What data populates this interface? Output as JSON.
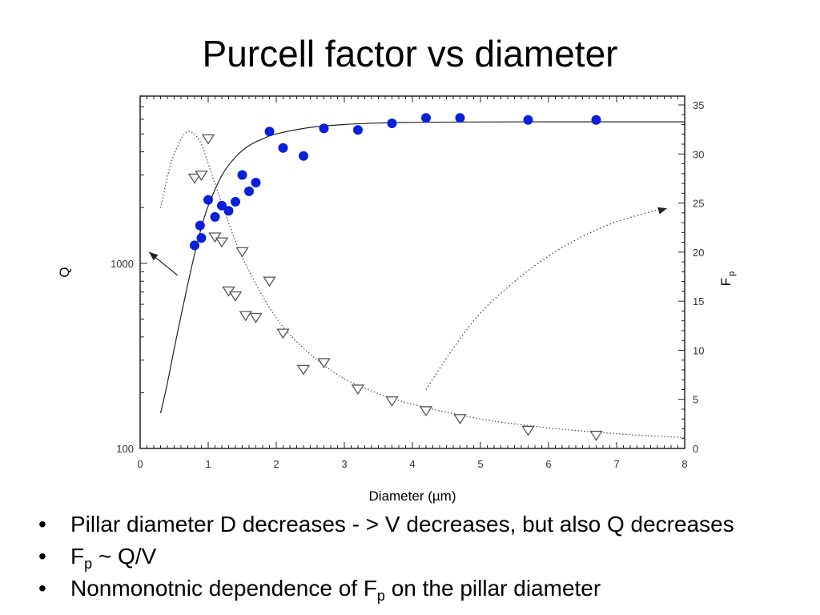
{
  "title": "Purcell factor vs diameter",
  "bullets": [
    {
      "text": "Pillar diameter D decreases - > V decreases, but also Q decreases"
    },
    {
      "pre": "F",
      "sub": "p",
      "post": " ~ Q/V"
    },
    {
      "pre": "Nonmonotnic dependence of F",
      "sub": "p",
      "post": " on the pillar diameter"
    }
  ],
  "chart_data": {
    "type": "scatter",
    "xlabel": "Diameter (µm)",
    "ylabel_left": "Q",
    "ylabel_right_main": "F",
    "ylabel_right_sub": "p",
    "x_range": [
      0,
      8
    ],
    "x_ticks": [
      "0",
      "1",
      "2",
      "3",
      "4",
      "5",
      "6",
      "7",
      "8"
    ],
    "y_left_scale": "log",
    "y_left_range": [
      100,
      8000
    ],
    "y_left_ticks": [
      "100",
      "1000"
    ],
    "y_right_range": [
      0,
      35
    ],
    "y_right_ticks": [
      "0",
      "5",
      "10",
      "15",
      "20",
      "25",
      "30",
      "35"
    ],
    "colors": {
      "q_points": "#0a1fd6",
      "fp_points": "#555555",
      "fit": "#222222"
    },
    "series": [
      {
        "axis": "left",
        "marker": "filled-circle",
        "x": [
          0.8,
          0.88,
          0.9,
          1.0,
          1.1,
          1.2,
          1.3,
          1.4,
          1.5,
          1.6,
          1.7,
          1.9,
          2.1,
          2.4,
          2.7,
          3.2,
          3.7,
          4.2,
          4.7,
          5.7,
          6.7
        ],
        "y": [
          1250,
          1600,
          1370,
          2200,
          1780,
          2050,
          1920,
          2150,
          3000,
          2450,
          2730,
          5150,
          4200,
          3800,
          5350,
          5250,
          5700,
          6100,
          6100,
          5950,
          5950
        ]
      },
      {
        "axis": "right",
        "marker": "open-triangle-down",
        "x": [
          0.8,
          0.9,
          1.0,
          1.1,
          1.2,
          1.3,
          1.4,
          1.5,
          1.55,
          1.7,
          1.9,
          2.1,
          2.4,
          2.7,
          3.2,
          3.7,
          4.2,
          4.7,
          5.7,
          6.7
        ],
        "y": [
          27.5,
          27.8,
          31.5,
          21.5,
          21.0,
          16.0,
          15.5,
          20.0,
          13.5,
          13.3,
          17.0,
          11.7,
          8.0,
          8.7,
          6.0,
          4.8,
          3.8,
          3.0,
          1.8,
          1.3
        ]
      }
    ],
    "fit_q": {
      "axis": "left",
      "x": [
        0.3,
        0.4,
        0.5,
        0.6,
        0.7,
        0.8,
        0.9,
        1.0,
        1.2,
        1.4,
        1.6,
        1.8,
        2.0,
        2.5,
        3.0,
        3.5,
        4.0,
        5.0,
        6.0,
        7.0,
        8.0
      ],
      "y": [
        155,
        225,
        345,
        520,
        770,
        1120,
        1560,
        2040,
        2980,
        3750,
        4320,
        4700,
        5000,
        5420,
        5620,
        5720,
        5770,
        5800,
        5810,
        5810,
        5810
      ]
    },
    "fit_fp": {
      "axis": "right",
      "x": [
        0.3,
        0.45,
        0.6,
        0.7,
        0.8,
        0.9,
        1.0,
        1.2,
        1.5,
        2.0,
        2.5,
        3.0,
        3.5,
        4.0,
        5.0,
        6.0,
        7.0,
        8.0
      ],
      "y": [
        24.5,
        29.0,
        31.5,
        32.3,
        32.0,
        31.0,
        29.0,
        25.0,
        19.5,
        13.3,
        9.6,
        7.1,
        5.6,
        4.5,
        3.0,
        2.1,
        1.5,
        1.1
      ]
    },
    "arrows": [
      {
        "axis": "left",
        "from": [
          0.55,
          860
        ],
        "to": [
          0.13,
          1150
        ],
        "style": "solid"
      },
      {
        "axis": "right",
        "path_x": [
          4.2,
          4.6,
          5.0,
          5.5,
          6.0,
          6.5,
          7.0,
          7.6
        ],
        "path_y": [
          6.0,
          10.2,
          13.8,
          17.0,
          19.6,
          21.6,
          23.1,
          24.3
        ],
        "style": "dotted"
      }
    ]
  }
}
